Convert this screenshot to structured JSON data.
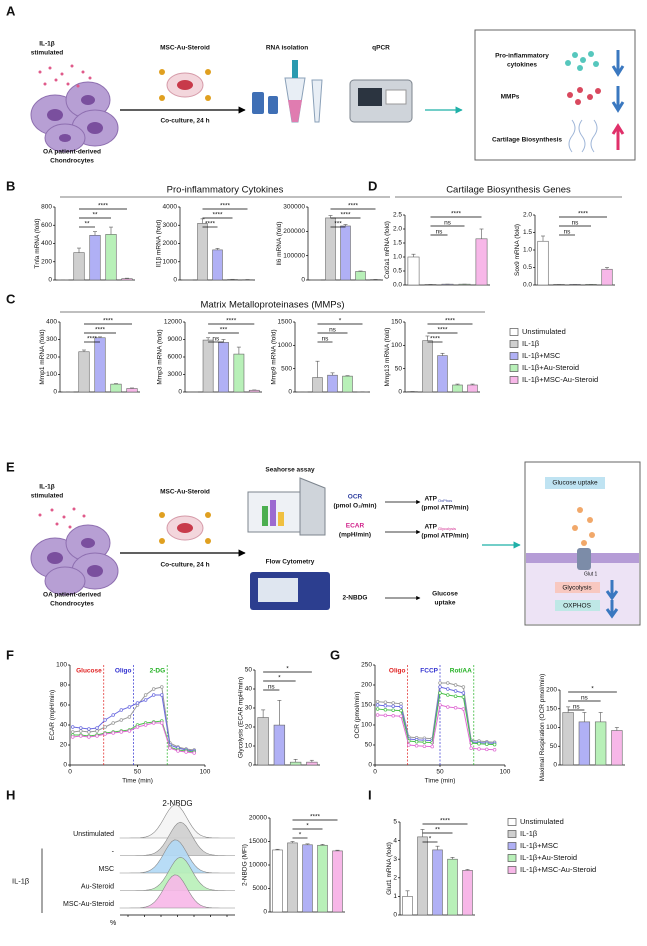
{
  "panel_letters": [
    "A",
    "B",
    "C",
    "D",
    "E",
    "F",
    "G",
    "H",
    "I"
  ],
  "diagram_a": {
    "stim": "IL-1β",
    "stim2": "stimulated",
    "cells": "OA patient-derived",
    "cells2": "Chondrocytes",
    "treatment": "MSC-Au-Steroid",
    "coculture": "Co-culture, 24 h",
    "rna": "RNA isolation",
    "qpcr": "qPCR",
    "outcomes": [
      "Pro-inflammatory",
      "cytokines",
      "MMPs",
      "Cartilage Biosynthesis"
    ]
  },
  "diagram_e": {
    "stim": "IL-1β",
    "stim2": "stimulated",
    "cells": "OA patient-derived",
    "cells2": "Chondrocytes",
    "treatment": "MSC-Au-Steroid",
    "coculture": "Co-culture, 24 h",
    "seahorse": "Seahorse assay",
    "flow": "Flow Cytometry",
    "ocr": "OCR",
    "ocr_unit": "(pmol O₂/min)",
    "ecar": "ECAR",
    "ecar_unit": "(mpH/min)",
    "atp": "ATP",
    "oxphos_sub": "OxPhos",
    "glyco_sub": "Glycolysis",
    "atp_unit": "(pmol ATP/min)",
    "nbdg": "2-NBDG",
    "glucose": "Glucose",
    "uptake": "uptake",
    "box": {
      "uptake": "Glucose uptake",
      "glut": "Glut 1",
      "glycolysis": "Glycolysis",
      "oxphos": "OXPHOS"
    }
  },
  "headers": {
    "b": "Pro-inflammatory Cytokines",
    "d": "Cartilage Biosynthesis Genes",
    "c": "Matrix Metalloproteinases (MMPs)"
  },
  "legend": [
    {
      "name": "Unstimulated",
      "color": "#ffffff"
    },
    {
      "name": "IL-1β",
      "color": "#cfcfcf"
    },
    {
      "name": "IL-1β+MSC",
      "color": "#b0b0f5"
    },
    {
      "name": "IL-1β+Au-Steroid",
      "color": "#b8f0b8"
    },
    {
      "name": "IL-1β+MSC-Au-Steroid",
      "color": "#f7b7e8"
    }
  ],
  "chart_data": [
    {
      "type": "bar",
      "ylabel": "Tnfa mRNA (fold)",
      "ylim": [
        0,
        800
      ],
      "yticks": [
        0,
        200,
        400,
        600,
        800
      ],
      "values": [
        1,
        300,
        490,
        500,
        15
      ],
      "errors": [
        0,
        50,
        40,
        80,
        5
      ],
      "colors": [
        "#ffffff",
        "#cfcfcf",
        "#b0b0f5",
        "#b8f0b8",
        "#f7b7e8"
      ],
      "annotations": [
        "**",
        "**",
        "****"
      ]
    },
    {
      "type": "bar",
      "ylabel": "Il1β mRNA (fold)",
      "ylim": [
        0,
        4000
      ],
      "yticks": [
        0,
        1000,
        2000,
        3000,
        4000
      ],
      "values": [
        1,
        3100,
        1650,
        30,
        20
      ],
      "errors": [
        0,
        250,
        80,
        10,
        5
      ],
      "colors": [
        "#ffffff",
        "#cfcfcf",
        "#b0b0f5",
        "#b8f0b8",
        "#f7b7e8"
      ],
      "annotations": [
        "****",
        "****",
        "****"
      ]
    },
    {
      "type": "bar",
      "ylabel": "Il6 mRNA (fold)",
      "ylim": [
        0,
        300000
      ],
      "yticks": [
        0,
        100000,
        200000,
        300000
      ],
      "values": [
        1,
        255000,
        222000,
        35000,
        2000
      ],
      "errors": [
        0,
        10000,
        6000,
        2000,
        500
      ],
      "colors": [
        "#ffffff",
        "#cfcfcf",
        "#b0b0f5",
        "#b8f0b8",
        "#f7b7e8"
      ],
      "annotations": [
        "***",
        "****",
        "****"
      ]
    },
    {
      "type": "bar",
      "ylabel": "Col2a1 mRNA (fold)",
      "ylim": [
        0,
        2.5
      ],
      "yticks": [
        {
          "value": 0,
          "label": "0.0"
        },
        {
          "value": 0.5,
          "label": "0.5"
        },
        {
          "value": 1,
          "label": "1.0"
        },
        {
          "value": 1.5,
          "label": "1.5"
        },
        {
          "value": 2,
          "label": "2.0"
        },
        {
          "value": 2.5,
          "label": "2.5"
        }
      ],
      "values": [
        1.0,
        0.02,
        0.03,
        0.03,
        1.65
      ],
      "errors": [
        0.1,
        0,
        0,
        0,
        0.35
      ],
      "colors": [
        "#ffffff",
        "#cfcfcf",
        "#b0b0f5",
        "#b8f0b8",
        "#f7b7e8"
      ],
      "annotations": [
        "ns",
        "ns",
        "****"
      ]
    },
    {
      "type": "bar",
      "ylabel": "Sox9 mRNA (fold)",
      "ylim": [
        0,
        2
      ],
      "yticks": [
        {
          "value": 0,
          "label": "0.0"
        },
        {
          "value": 0.5,
          "label": "0.5"
        },
        {
          "value": 1,
          "label": "1.0"
        },
        {
          "value": 1.5,
          "label": "1.5"
        },
        {
          "value": 2,
          "label": "2.0"
        }
      ],
      "values": [
        1.25,
        0.02,
        0.02,
        0.02,
        0.45
      ],
      "errors": [
        0.15,
        0,
        0,
        0,
        0.05
      ],
      "colors": [
        "#ffffff",
        "#cfcfcf",
        "#b0b0f5",
        "#b8f0b8",
        "#f7b7e8"
      ],
      "annotations": [
        "ns",
        "ns",
        "****"
      ]
    },
    {
      "type": "bar",
      "ylabel": "Mmp1 mRNA (fold)",
      "ylim": [
        0,
        400
      ],
      "yticks": [
        0,
        100,
        200,
        300,
        400
      ],
      "values": [
        1,
        230,
        310,
        45,
        20
      ],
      "errors": [
        0,
        10,
        5,
        3,
        3
      ],
      "colors": [
        "#ffffff",
        "#cfcfcf",
        "#b0b0f5",
        "#b8f0b8",
        "#f7b7e8"
      ],
      "annotations": [
        "****",
        "****",
        "****"
      ]
    },
    {
      "type": "bar",
      "ylabel": "Mmp3 mRNA (fold)",
      "ylim": [
        0,
        12000
      ],
      "yticks": [
        0,
        3000,
        6000,
        9000,
        12000
      ],
      "values": [
        1,
        8900,
        8500,
        6500,
        300
      ],
      "errors": [
        0,
        400,
        500,
        1200,
        50
      ],
      "colors": [
        "#ffffff",
        "#cfcfcf",
        "#b0b0f5",
        "#b8f0b8",
        "#f7b7e8"
      ],
      "annotations": [
        "ns",
        "***",
        "****"
      ]
    },
    {
      "type": "bar",
      "ylabel": "Mmp9 mRNA (fold)",
      "ylim": [
        0,
        1500
      ],
      "yticks": [
        0,
        500,
        1000,
        1500
      ],
      "values": [
        1,
        310,
        360,
        340,
        5
      ],
      "errors": [
        0,
        350,
        50,
        10,
        0
      ],
      "colors": [
        "#ffffff",
        "#cfcfcf",
        "#b0b0f5",
        "#b8f0b8",
        "#f7b7e8"
      ],
      "annotations": [
        "ns",
        "ns",
        "*"
      ]
    },
    {
      "type": "bar",
      "ylabel": "Mmp13 mRNA (fold)",
      "ylim": [
        0,
        150
      ],
      "yticks": [
        0,
        50,
        100,
        150
      ],
      "values": [
        1,
        110,
        78,
        15,
        15
      ],
      "errors": [
        0,
        10,
        5,
        2,
        2
      ],
      "colors": [
        "#ffffff",
        "#cfcfcf",
        "#b0b0f5",
        "#b8f0b8",
        "#f7b7e8"
      ],
      "annotations": [
        "****",
        "****",
        "****"
      ]
    },
    {
      "type": "line",
      "xlabel": "Time (min)",
      "ylabel": "ECAR (mpH/min)",
      "xlim": [
        0,
        100
      ],
      "xticks": [
        0,
        50,
        100
      ],
      "ylim": [
        0,
        100
      ],
      "yticks": [
        0,
        20,
        40,
        60,
        80,
        100
      ],
      "events": [
        {
          "label": "Glucose",
          "x": 25,
          "color": "#e02020"
        },
        {
          "label": "Oligo",
          "x": 47,
          "color": "#3030d0"
        },
        {
          "label": "2-DG",
          "x": 72,
          "color": "#20b020"
        }
      ],
      "x": [
        2,
        8,
        14,
        20,
        26,
        32,
        38,
        44,
        50,
        56,
        62,
        68,
        74,
        80,
        86,
        92
      ],
      "series": [
        {
          "color": "#999999",
          "values": [
            33,
            34,
            33,
            34,
            38,
            42,
            45,
            48,
            60,
            70,
            76,
            78,
            22,
            18,
            16,
            15
          ]
        },
        {
          "color": "#6b6be0",
          "values": [
            38,
            37,
            36,
            37,
            45,
            50,
            55,
            58,
            62,
            65,
            70,
            70,
            20,
            17,
            15,
            14
          ]
        },
        {
          "color": "#4cc24c",
          "values": [
            30,
            30,
            29,
            30,
            32,
            33,
            34,
            35,
            40,
            42,
            43,
            44,
            18,
            15,
            14,
            13
          ]
        },
        {
          "color": "#e06bd4",
          "values": [
            28,
            29,
            28,
            29,
            31,
            32,
            33,
            34,
            38,
            40,
            42,
            42,
            17,
            14,
            13,
            12
          ]
        }
      ]
    },
    {
      "type": "bar",
      "ylabel": "Glycolysis (ECAR mpH/min)",
      "ylim": [
        0,
        50
      ],
      "yticks": [
        0,
        10,
        20,
        30,
        40,
        50
      ],
      "values": [
        25,
        21,
        1.5,
        1.5
      ],
      "errors": [
        4,
        13,
        1.5,
        1
      ],
      "colors": [
        "#cfcfcf",
        "#b0b0f5",
        "#b8f0b8",
        "#f7b7e8"
      ],
      "annotations": [
        "ns",
        "*",
        "*"
      ]
    },
    {
      "type": "line",
      "xlabel": "Time (min)",
      "ylabel": "OCR (pmol/min)",
      "xlim": [
        0,
        100
      ],
      "xticks": [
        0,
        50,
        100
      ],
      "ylim": [
        0,
        250
      ],
      "yticks": [
        0,
        50,
        100,
        150,
        200,
        250
      ],
      "events": [
        {
          "label": "Oligo",
          "x": 25,
          "color": "#e02020"
        },
        {
          "label": "FCCP",
          "x": 50,
          "color": "#3030d0"
        },
        {
          "label": "Rot/AA",
          "x": 76,
          "color": "#20b020"
        }
      ],
      "x": [
        2,
        8,
        14,
        20,
        26,
        32,
        38,
        44,
        50,
        56,
        62,
        68,
        74,
        80,
        86,
        92
      ],
      "series": [
        {
          "color": "#999999",
          "values": [
            158,
            157,
            155,
            153,
            70,
            68,
            67,
            66,
            205,
            205,
            200,
            195,
            62,
            60,
            58,
            57
          ]
        },
        {
          "color": "#6b6be0",
          "values": [
            150,
            148,
            147,
            146,
            65,
            63,
            62,
            61,
            195,
            190,
            185,
            180,
            58,
            56,
            55,
            54
          ]
        },
        {
          "color": "#4cc24c",
          "values": [
            140,
            138,
            137,
            136,
            60,
            58,
            57,
            56,
            180,
            175,
            172,
            170,
            55,
            53,
            52,
            51
          ]
        },
        {
          "color": "#e06bd4",
          "values": [
            125,
            124,
            123,
            122,
            50,
            48,
            47,
            46,
            150,
            145,
            143,
            140,
            42,
            40,
            39,
            38
          ]
        }
      ]
    },
    {
      "type": "bar",
      "ylabel": "Maximal Respiration (OCR pmol/min)",
      "ylim": [
        0,
        200
      ],
      "yticks": [
        0,
        50,
        100,
        150,
        200
      ],
      "values": [
        140,
        115,
        115,
        92
      ],
      "errors": [
        15,
        25,
        25,
        8
      ],
      "colors": [
        "#cfcfcf",
        "#b0b0f5",
        "#b8f0b8",
        "#f7b7e8"
      ],
      "annotations": [
        "ns",
        "ns",
        "*"
      ]
    },
    {
      "type": "ridgeline",
      "title": "2-NBDG",
      "ylabel": "%",
      "group_label": "IL-1β",
      "labels": [
        "Unstimulated",
        "-",
        "MSC",
        "Au-Steroid",
        "MSC-Au-Steroid"
      ],
      "colors": [
        "#f4f4f4",
        "#cfcfcf",
        "#b0d8f5",
        "#b8f0b8",
        "#f7b7e8"
      ]
    },
    {
      "type": "bar",
      "ylabel": "2-NBDG (MFI)",
      "ylim": [
        0,
        20000
      ],
      "yticks": [
        0,
        5000,
        10000,
        15000,
        20000
      ],
      "values": [
        13200,
        14700,
        14300,
        14200,
        13000
      ],
      "errors": [
        150,
        300,
        200,
        200,
        150
      ],
      "colors": [
        "#ffffff",
        "#cfcfcf",
        "#b0b0f5",
        "#b8f0b8",
        "#f7b7e8"
      ],
      "annotations": [
        "*",
        "*",
        "****"
      ]
    },
    {
      "type": "bar",
      "ylabel": "Glut1 mRNA (fold)",
      "ylim": [
        0,
        5
      ],
      "yticks": [
        0,
        1,
        2,
        3,
        4,
        5
      ],
      "values": [
        1,
        4.2,
        3.5,
        3.0,
        2.4
      ],
      "errors": [
        0.3,
        0.4,
        0.2,
        0.1,
        0.05
      ],
      "colors": [
        "#ffffff",
        "#cfcfcf",
        "#b0b0f5",
        "#b8f0b8",
        "#f7b7e8"
      ],
      "annotations": [
        "*",
        "**",
        "****"
      ]
    }
  ]
}
